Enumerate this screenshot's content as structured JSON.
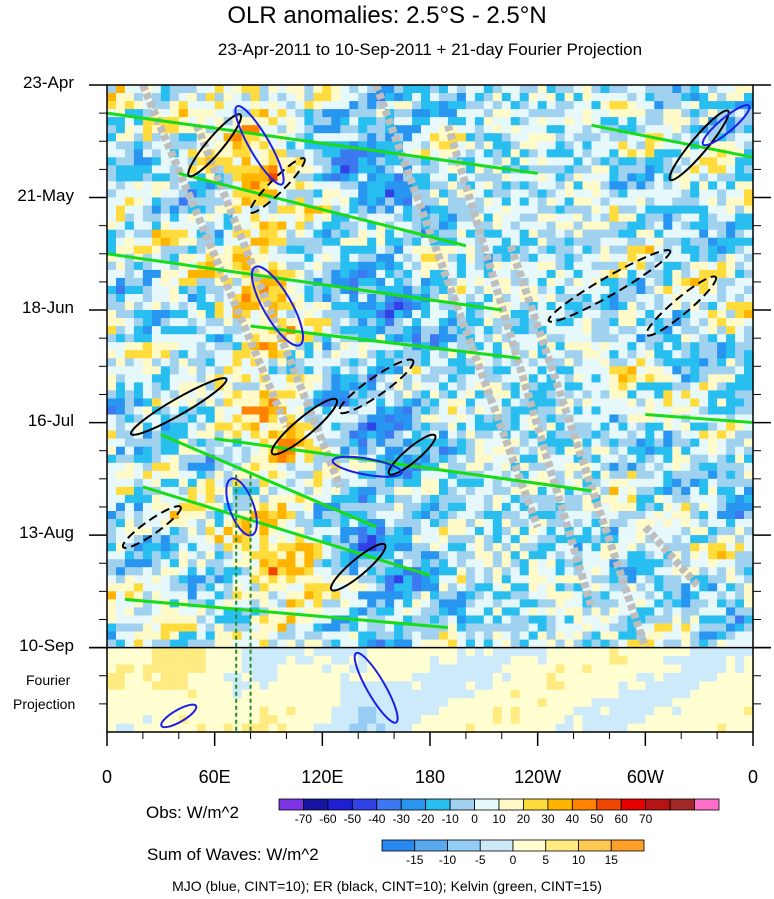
{
  "chart_data": {
    "type": "heatmap",
    "title": "OLR anomalies: 2.5°S - 2.5°N",
    "subtitle": "23-Apr-2011 to 10-Sep-2011 + 21-day Fourier Projection",
    "x_ticks": [
      {
        "label": "0",
        "lon": 0
      },
      {
        "label": "60E",
        "lon": 60
      },
      {
        "label": "120E",
        "lon": 120
      },
      {
        "label": "180",
        "lon": 180
      },
      {
        "label": "120W",
        "lon": 240
      },
      {
        "label": "60W",
        "lon": 300
      },
      {
        "label": "0",
        "lon": 360
      }
    ],
    "y_ticks": [
      {
        "label": "23-Apr",
        "day": 0
      },
      {
        "label": "21-May",
        "day": 28
      },
      {
        "label": "18-Jun",
        "day": 56
      },
      {
        "label": "16-Jul",
        "day": 84
      },
      {
        "label": "13-Aug",
        "day": 112
      },
      {
        "label": "10-Sep",
        "day": 140
      }
    ],
    "xlim": [
      0,
      360
    ],
    "ylim_days": [
      0,
      161
    ],
    "projection_label_1": "Fourier",
    "projection_label_2": "Projection",
    "obs_colorbar": {
      "label": "Obs: W/m^2",
      "levels": [
        -70,
        -60,
        -50,
        -40,
        -30,
        -20,
        -10,
        0,
        10,
        20,
        30,
        40,
        50,
        60,
        70
      ],
      "colors": [
        "#7f33e6",
        "#1414a0",
        "#1e1ed2",
        "#3241e6",
        "#3c78f0",
        "#2896f0",
        "#28bef0",
        "#a0d2f0",
        "#e6f8fa",
        "#fffac8",
        "#ffdc3c",
        "#ffb400",
        "#ff8200",
        "#f04600",
        "#e60000",
        "#b41414",
        "#a02828",
        "#ff6ec8"
      ]
    },
    "waves_colorbar": {
      "label": "Sum of Waves: W/m^2",
      "levels": [
        -15,
        -10,
        -5,
        0,
        5,
        10,
        15
      ],
      "colors": [
        "#2888f0",
        "#5aaaf0",
        "#96cdf5",
        "#cdeafa",
        "#ffffd2",
        "#ffeb82",
        "#ffc850",
        "#ffa028"
      ]
    },
    "footnote": "MJO (blue, CINT=10); ER (black, CINT=10); Kelvin (green, CINT=15)",
    "series_colors": {
      "mjo": "#1e1ee6",
      "er": "#000000",
      "kelvin": "#19dc19",
      "gray": "#bebebe"
    }
  }
}
